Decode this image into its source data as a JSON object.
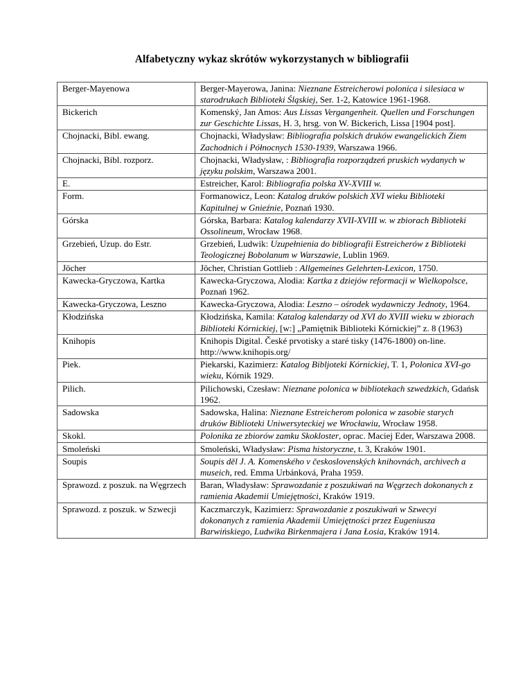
{
  "doc": {
    "title": "Alfabetyczny wykaz skrótów wykorzystanych w bibliografii"
  },
  "colors": {
    "page_background": "#ffffff",
    "text": "#000000",
    "table_border": "#4d4d4d"
  },
  "table": {
    "rows": [
      {
        "abbr": "Berger-Mayenowa",
        "entry": [
          {
            "text": "Berger-Mayerowa, Janina: ",
            "italic": false
          },
          {
            "text": "Nieznane Estreicherowi polonica i silesiaca w starodrukach Biblioteki Śląskiej",
            "italic": true
          },
          {
            "text": ", Ser. 1-2, Katowice 1961-1968.",
            "italic": false
          }
        ]
      },
      {
        "abbr": "Bickerich",
        "entry": [
          {
            "text": "Komenský, Jan Amos: ",
            "italic": false
          },
          {
            "text": "Aus Lissas Vergangenheit. Quellen und Forschungen zur Geschichte Lissas",
            "italic": true
          },
          {
            "text": ", H. 3, hrsg. von W. Bickerich, Lissa [1904 post].",
            "italic": false
          }
        ]
      },
      {
        "abbr": "Chojnacki, Bibl. ewang.",
        "entry": [
          {
            "text": "Chojnacki, Władysław: ",
            "italic": false
          },
          {
            "text": "Bibliografia polskich druków ewangelickich Ziem Zachodnich i Północnych 1530-1939",
            "italic": true
          },
          {
            "text": ", Warszawa 1966.",
            "italic": false
          }
        ]
      },
      {
        "abbr": "Chojnacki, Bibl. rozporz.",
        "entry": [
          {
            "text": "Chojnacki, Władysław, : ",
            "italic": false
          },
          {
            "text": "Bibliografia rozporządzeń pruskich wydanych w języku polskim",
            "italic": true
          },
          {
            "text": ", Warszawa 2001.",
            "italic": false
          }
        ]
      },
      {
        "abbr": "E.",
        "entry": [
          {
            "text": "Estreicher, Karol: ",
            "italic": false
          },
          {
            "text": "Bibliografia polska XV-XVIII w.",
            "italic": true
          }
        ]
      },
      {
        "abbr": "Form.",
        "entry": [
          {
            "text": "Formanowicz, Leon: ",
            "italic": false
          },
          {
            "text": "Katalog druków polskich XVI wieku Biblioteki Kapitulnej w Gnieźnie",
            "italic": true
          },
          {
            "text": ", Poznań 1930.",
            "italic": false
          }
        ]
      },
      {
        "abbr": "Górska",
        "entry": [
          {
            "text": "Górska, Barbara: ",
            "italic": false
          },
          {
            "text": "Katalog kalendarzy XVII-XVIII w. w zbiorach Biblioteki Ossolineum",
            "italic": true
          },
          {
            "text": ", Wrocław 1968.",
            "italic": false
          }
        ]
      },
      {
        "abbr": "Grzebień, Uzup. do Estr.",
        "entry": [
          {
            "text": "Grzebień, Ludwik: ",
            "italic": false
          },
          {
            "text": "Uzupełnienia do bibliografii Estreicherów z Biblioteki Teologicznej Bobolanum w Warszawie",
            "italic": true
          },
          {
            "text": ", Lublin 1969.",
            "italic": false
          }
        ]
      },
      {
        "abbr": "Jöcher",
        "entry": [
          {
            "text": "Jöcher, Christian Gottlieb : ",
            "italic": false
          },
          {
            "text": "Allgemeines Gelehrten-Lexicon",
            "italic": true
          },
          {
            "text": ", 1750.",
            "italic": false
          }
        ]
      },
      {
        "abbr": "Kawecka-Gryczowa, Kartka",
        "entry": [
          {
            "text": "Kawecka-Gryczowa, Alodia: ",
            "italic": false
          },
          {
            "text": "Kartka z dziejów reformacji w Wielkopolsce",
            "italic": true
          },
          {
            "text": ", Poznań 1962.",
            "italic": false
          }
        ]
      },
      {
        "abbr": "Kawecka-Gryczowa, Leszno",
        "entry": [
          {
            "text": "Kawecka-Gryczowa, Alodia: ",
            "italic": false
          },
          {
            "text": "Leszno – ośrodek wydawniczy Jednoty",
            "italic": true
          },
          {
            "text": ", 1964.",
            "italic": false
          }
        ]
      },
      {
        "abbr": "Kłodzińska",
        "entry": [
          {
            "text": "Kłodzińska, Kamila: ",
            "italic": false
          },
          {
            "text": "Katalog kalendarzy od XVI do XVIII wieku w zbiorach Biblioteki Kórnickiej",
            "italic": true
          },
          {
            "text": ", [w:] „Pamiętnik Biblioteki Kórnickiej” z. 8 (1963)",
            "italic": false
          }
        ]
      },
      {
        "abbr": "Knihopis",
        "entry": [
          {
            "text": "Knihopis Digital. České prvotisky a staré tisky (1476-1800) on-line. http://www.knihopis.org/",
            "italic": false
          }
        ]
      },
      {
        "abbr": "Piek.",
        "entry": [
          {
            "text": "Piekarski, Kazimierz: ",
            "italic": false
          },
          {
            "text": "Katalog Bibljoteki Kórnickiej",
            "italic": true
          },
          {
            "text": ", T. 1, ",
            "italic": false
          },
          {
            "text": "Polonica XVI-go wieku",
            "italic": true
          },
          {
            "text": ", Kórnik 1929.",
            "italic": false
          }
        ]
      },
      {
        "abbr": "Pilich.",
        "entry": [
          {
            "text": "Pilichowski, Czesław: ",
            "italic": false
          },
          {
            "text": "Nieznane polonica w bibliotekach szwedzkich",
            "italic": true
          },
          {
            "text": ", Gdańsk 1962.",
            "italic": false
          }
        ]
      },
      {
        "abbr": "Sadowska",
        "entry": [
          {
            "text": "Sadowska, Halina: ",
            "italic": false
          },
          {
            "text": "Nieznane Estreicherom polonica w zasobie starych druków Biblioteki Uniwersyteckiej we Wrocławiu",
            "italic": true
          },
          {
            "text": ", Wrocław 1958.",
            "italic": false
          }
        ]
      },
      {
        "abbr": "Skokl.",
        "entry": [
          {
            "text": "Polonika ze zbiorów zamku Skokloster",
            "italic": true
          },
          {
            "text": ", oprac. Maciej Eder, Warszawa 2008.",
            "italic": false
          }
        ]
      },
      {
        "abbr": "Smoleński",
        "entry": [
          {
            "text": "Smoleński, Władysław: ",
            "italic": false
          },
          {
            "text": "Pisma historyczne",
            "italic": true
          },
          {
            "text": ", t. 3, Kraków 1901.",
            "italic": false
          }
        ]
      },
      {
        "abbr": "Soupis",
        "entry": [
          {
            "text": "Soupis děl J. A. Komenského v československých knihovnách, archivech a museich",
            "italic": true
          },
          {
            "text": ", red. Emma Urbánková, Praha 1959.",
            "italic": false
          }
        ]
      },
      {
        "abbr": "Sprawozd. z poszuk. na Węgrzech",
        "entry": [
          {
            "text": "Baran, Władysław: ",
            "italic": false
          },
          {
            "text": "Sprawozdanie z poszukiwań na Węgrzech dokonanych z ramienia Akademii Umiejętności",
            "italic": true
          },
          {
            "text": ", Kraków 1919.",
            "italic": false
          }
        ]
      },
      {
        "abbr": "Sprawozd. z poszuk. w Szwecji",
        "entry": [
          {
            "text": "Kaczmarczyk, Kazimierz: ",
            "italic": false
          },
          {
            "text": "Sprawozdanie z poszukiwań w Szwecyi dokonanych z ramienia Akademii Umiejętności przez Eugeniusza Barwińskiego, Ludwika Birkenmajera i Jana Łosia",
            "italic": true
          },
          {
            "text": ", Kraków 1914.",
            "italic": false
          }
        ]
      }
    ]
  }
}
